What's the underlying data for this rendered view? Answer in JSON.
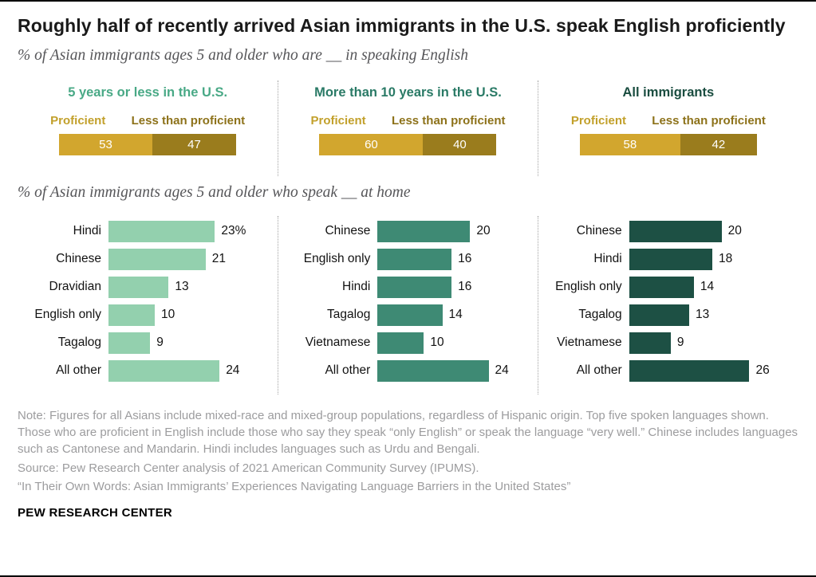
{
  "meta": {
    "title": "Roughly half of recently arrived Asian immigrants in the U.S. speak English proficiently",
    "brand": "PEW RESEARCH CENTER"
  },
  "colors": {
    "gold": "#d2a62e",
    "dark_gold": "#9a7c1d",
    "legend_proficient_text": "#c2a02b",
    "legend_less_text": "#8d721a",
    "panel_header_colors": [
      "#49a986",
      "#2a7a66",
      "#1a4d40"
    ],
    "bar_colors": [
      "#93d0ae",
      "#3e8a74",
      "#1d5044"
    ],
    "divider": "#a3a3a3",
    "note_gray": "#9c9c9e"
  },
  "chart_data": [
    {
      "type": "bar",
      "variant": "stacked-horizontal-100",
      "title": "% of Asian immigrants ages 5 and older who are __ in speaking English",
      "legend": [
        "Proficient",
        "Less than proficient"
      ],
      "legend_position": "above-bars",
      "xlim": [
        0,
        100
      ],
      "grid": false,
      "panels": [
        {
          "label": "5 years or less in the U.S.",
          "values": [
            53,
            47
          ]
        },
        {
          "label": "More than 10 years in the U.S.",
          "values": [
            60,
            40
          ]
        },
        {
          "label": "All immigrants",
          "values": [
            58,
            42
          ]
        }
      ]
    },
    {
      "type": "bar",
      "variant": "horizontal",
      "title": "% of Asian immigrants ages 5 and older who speak __ at home",
      "xlim": [
        0,
        26
      ],
      "grid": false,
      "panels": [
        {
          "label": "5 years or less in the U.S.",
          "categories": [
            "Hindi",
            "Chinese",
            "Dravidian",
            "English only",
            "Tagalog",
            "All other"
          ],
          "values": [
            23,
            21,
            13,
            10,
            9,
            24
          ],
          "value_labels": [
            "23%",
            "21",
            "13",
            "10",
            "9",
            "24"
          ]
        },
        {
          "label": "More than 10 years in the U.S.",
          "categories": [
            "Chinese",
            "English only",
            "Hindi",
            "Tagalog",
            "Vietnamese",
            "All other"
          ],
          "values": [
            20,
            16,
            16,
            14,
            10,
            24
          ],
          "value_labels": [
            "20",
            "16",
            "16",
            "14",
            "10",
            "24"
          ]
        },
        {
          "label": "All immigrants",
          "categories": [
            "Chinese",
            "Hindi",
            "English only",
            "Tagalog",
            "Vietnamese",
            "All other"
          ],
          "values": [
            20,
            18,
            14,
            13,
            9,
            26
          ],
          "value_labels": [
            "20",
            "18",
            "14",
            "13",
            "9",
            "26"
          ]
        }
      ]
    }
  ],
  "notes": {
    "note": "Note: Figures for all Asians include mixed-race and mixed-group populations, regardless of Hispanic origin. Top five spoken languages shown. Those who are proficient in English include those who say they speak “only English” or speak the language “very well.” Chinese includes languages such as Cantonese and Mandarin. Hindi includes languages such as Urdu and Bengali.",
    "source": "Source: Pew Research Center analysis of 2021 American Community Survey (IPUMS).",
    "report": "“In Their Own Words: Asian Immigrants’ Experiences Navigating Language Barriers in the United States”"
  }
}
